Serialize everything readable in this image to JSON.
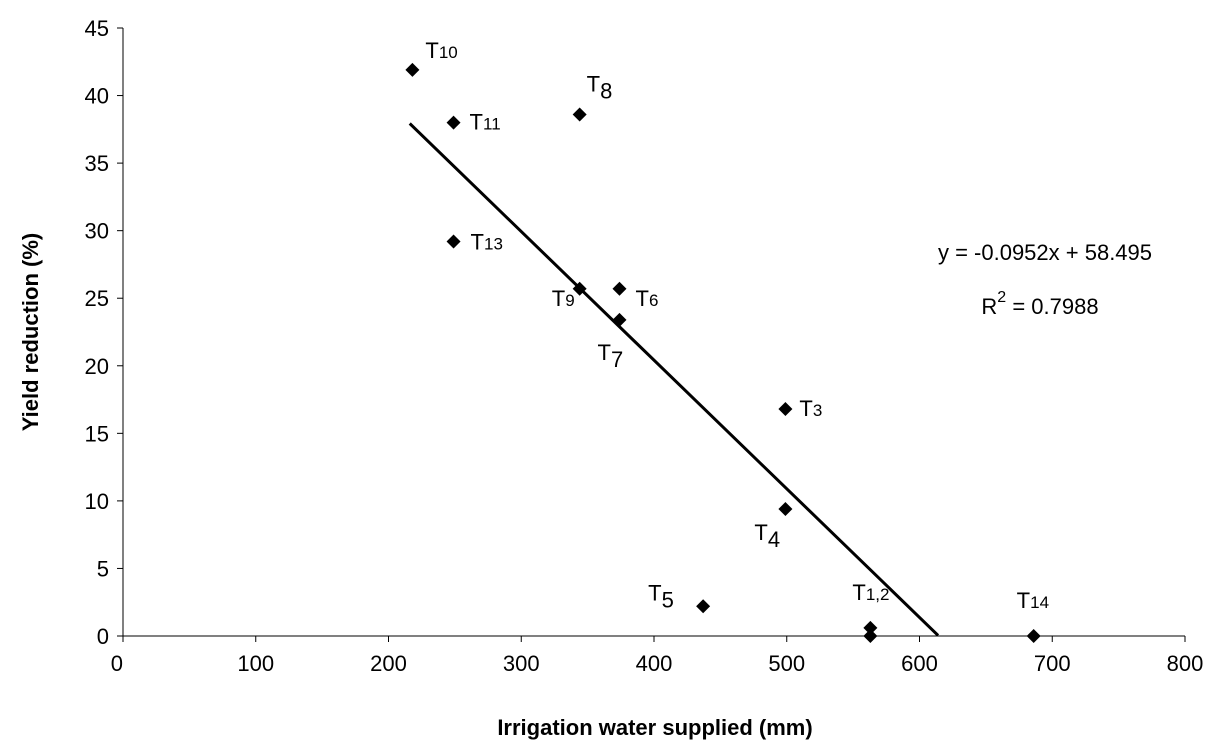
{
  "chart_data": {
    "type": "scatter",
    "x_label": "Irrigation water supplied (mm)",
    "y_label": "Yield reduction (%)",
    "xlim": [
      0,
      800
    ],
    "xticks": [
      0,
      100,
      200,
      300,
      400,
      500,
      600,
      700,
      800
    ],
    "ylim": [
      0,
      45
    ],
    "yticks": [
      0,
      5,
      10,
      15,
      20,
      25,
      30,
      35,
      40,
      45
    ],
    "color": "#000000",
    "series": [
      {
        "x": [
          218,
          249,
          344,
          249,
          344,
          374,
          374,
          499,
          499,
          437,
          563,
          563,
          686
        ],
        "values": [
          41.9,
          38,
          38.6,
          29.2,
          25.7,
          25.7,
          23.4,
          16.8,
          9.4,
          2.2,
          0.6,
          0,
          0
        ],
        "point_labels": [
          [
            "T",
            "10"
          ],
          [
            "T",
            "11"
          ],
          [
            "T",
            "8"
          ],
          [
            "T",
            "13"
          ],
          [
            "T",
            "9"
          ],
          [
            "T",
            "6"
          ],
          [
            "T",
            "7"
          ],
          [
            "T",
            "3"
          ],
          [
            "T",
            "4"
          ],
          [
            "T",
            "5"
          ],
          [
            "T",
            "1,2"
          ],
          null,
          [
            "T",
            "14"
          ]
        ]
      }
    ],
    "trendline": {
      "slope": -0.0952,
      "intercept": 58.495,
      "x": [
        216,
        614
      ],
      "equation": "y = -0.0952x + 58.495",
      "r2_label": [
        "R",
        "2",
        " = 0.7988"
      ]
    }
  }
}
